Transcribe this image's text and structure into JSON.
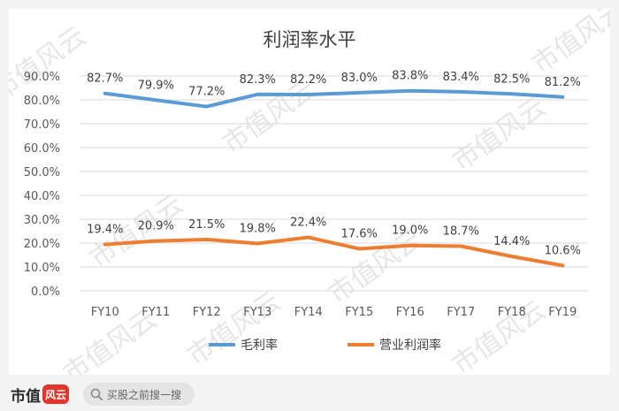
{
  "chart_data": {
    "type": "line",
    "title": "利润率水平",
    "categories": [
      "FY10",
      "FY11",
      "FY12",
      "FY13",
      "FY14",
      "FY15",
      "FY16",
      "FY17",
      "FY18",
      "FY19"
    ],
    "series": [
      {
        "name": "毛利率",
        "values": [
          82.7,
          79.9,
          77.2,
          82.3,
          82.2,
          83.0,
          83.8,
          83.4,
          82.5,
          81.2
        ],
        "labels": [
          "82.7%",
          "79.9%",
          "77.2%",
          "82.3%",
          "82.2%",
          "83.0%",
          "83.8%",
          "83.4%",
          "82.5%",
          "81.2%"
        ],
        "color": "#5b9bd5"
      },
      {
        "name": "营业利润率",
        "values": [
          19.4,
          20.9,
          21.5,
          19.8,
          22.4,
          17.6,
          19.0,
          18.7,
          14.4,
          10.6
        ],
        "labels": [
          "19.4%",
          "20.9%",
          "21.5%",
          "19.8%",
          "22.4%",
          "17.6%",
          "19.0%",
          "18.7%",
          "14.4%",
          "10.6%"
        ],
        "color": "#ed7d31"
      }
    ],
    "yticks": [
      "0.0%",
      "10.0%",
      "20.0%",
      "30.0%",
      "40.0%",
      "50.0%",
      "60.0%",
      "70.0%",
      "80.0%",
      "90.0%"
    ],
    "ylim": [
      0,
      90
    ],
    "grid": true,
    "legend": "bottom",
    "watermark": "市值风云"
  },
  "footer": {
    "logo_text": "市值",
    "logo_badge": "风云",
    "search_text": "买股之前搜一搜",
    "search_icon": "search-icon"
  }
}
